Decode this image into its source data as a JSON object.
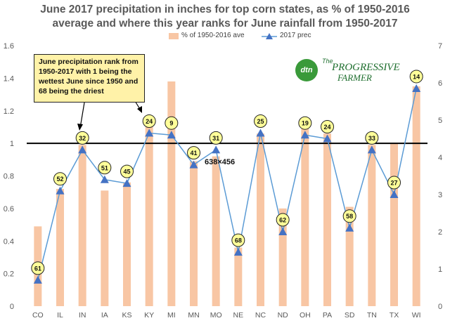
{
  "title_line1": "June 2017 precipitation in inches for top corn states, as % of 1950-2016",
  "title_line2": "average and where this year ranks for June rainfall from 1950-2017",
  "legend": {
    "bar_label": "% of 1950-2016 ave",
    "line_label": "2017 prec"
  },
  "callout_text": "June precipitation rank from 1950-2017 with 1 being the wettest June since 1950 and 68 being the driest",
  "logo": {
    "badge": "dtn",
    "line1": "The",
    "line2": "PROGRESSIVE",
    "line3": "FARMER"
  },
  "overlay_label": "638×456",
  "chart_data": {
    "type": "bar",
    "categories": [
      "CO",
      "IL",
      "IN",
      "IA",
      "KS",
      "KY",
      "MI",
      "MN",
      "MO",
      "NE",
      "NC",
      "ND",
      "OH",
      "PA",
      "SD",
      "TN",
      "TX",
      "WI"
    ],
    "series": [
      {
        "name": "% of 1950-2016 ave",
        "type": "bar",
        "axis": "left",
        "values": [
          0.49,
          0.72,
          0.99,
          0.71,
          0.76,
          1.1,
          1.38,
          0.89,
          0.92,
          0.36,
          1.06,
          0.6,
          1.09,
          1.06,
          0.61,
          0.99,
          1.0,
          1.35
        ]
      },
      {
        "name": "2017 prec",
        "type": "line",
        "axis": "right",
        "values": [
          0.7,
          3.1,
          4.2,
          3.4,
          3.3,
          4.65,
          4.6,
          3.8,
          4.2,
          1.45,
          4.65,
          2.0,
          4.6,
          4.5,
          2.1,
          4.2,
          3.0,
          5.85
        ]
      }
    ],
    "ranks": [
      61,
      52,
      32,
      51,
      45,
      24,
      9,
      41,
      31,
      68,
      25,
      62,
      19,
      24,
      58,
      33,
      27,
      14
    ],
    "reference_line": 1.0,
    "ylim_left": [
      0,
      1.6
    ],
    "ylim_right": [
      0,
      7
    ],
    "yticks_left": [
      "0",
      "0.2",
      "0.4",
      "0.6",
      "0.8",
      "1",
      "1.2",
      "1.4",
      "1.6"
    ],
    "yticks_right": [
      "0",
      "1",
      "2",
      "3",
      "4",
      "5",
      "6",
      "7"
    ],
    "grid": false,
    "legend_position": "top-right",
    "colors": {
      "bar": "#f8c6a4",
      "line": "#5b9bd5",
      "marker": "#4472c4",
      "rank_fill": "#ffff99"
    }
  }
}
